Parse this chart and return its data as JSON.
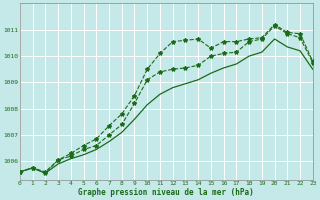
{
  "title": "Graphe pression niveau de la mer (hPa)",
  "bg_color": "#c5e8e8",
  "grid_color": "#ffffff",
  "line_color": "#1a6b1a",
  "x_min": 0,
  "x_max": 23,
  "y_min": 1005.3,
  "y_max": 1012.0,
  "y_ticks": [
    1006,
    1007,
    1008,
    1009,
    1010,
    1011
  ],
  "x_ticks": [
    0,
    1,
    2,
    3,
    4,
    5,
    6,
    7,
    8,
    9,
    10,
    11,
    12,
    13,
    14,
    15,
    16,
    17,
    18,
    19,
    20,
    21,
    22,
    23
  ],
  "series1_x": [
    0,
    1,
    2,
    3,
    4,
    5,
    6,
    7,
    8,
    9,
    10,
    11,
    12,
    13,
    14,
    15,
    16,
    17,
    18,
    19,
    20,
    21,
    22,
    23
  ],
  "series1_y": [
    1005.6,
    1005.75,
    1005.6,
    1006.05,
    1006.3,
    1006.6,
    1006.85,
    1007.35,
    1007.8,
    1008.5,
    1009.5,
    1010.1,
    1010.55,
    1010.6,
    1010.65,
    1010.3,
    1010.55,
    1010.55,
    1010.65,
    1010.7,
    1011.2,
    1010.9,
    1010.85,
    1009.8
  ],
  "series2_x": [
    0,
    1,
    2,
    3,
    4,
    5,
    6,
    7,
    8,
    9,
    10,
    11,
    12,
    13,
    14,
    15,
    16,
    17,
    18,
    19,
    20,
    21,
    22,
    23
  ],
  "series2_y": [
    1005.6,
    1005.75,
    1005.55,
    1006.05,
    1006.2,
    1006.45,
    1006.6,
    1007.0,
    1007.4,
    1008.2,
    1009.1,
    1009.4,
    1009.5,
    1009.55,
    1009.65,
    1010.0,
    1010.1,
    1010.15,
    1010.55,
    1010.65,
    1011.15,
    1010.85,
    1010.7,
    1009.75
  ],
  "series3_x": [
    0,
    1,
    2,
    3,
    4,
    5,
    6,
    7,
    8,
    9,
    10,
    11,
    12,
    13,
    14,
    15,
    16,
    17,
    18,
    19,
    20,
    21,
    22,
    23
  ],
  "series3_y": [
    1005.6,
    1005.75,
    1005.55,
    1005.9,
    1006.1,
    1006.25,
    1006.45,
    1006.75,
    1007.1,
    1007.6,
    1008.15,
    1008.55,
    1008.8,
    1008.95,
    1009.1,
    1009.35,
    1009.55,
    1009.7,
    1010.0,
    1010.15,
    1010.65,
    1010.35,
    1010.2,
    1009.5
  ]
}
